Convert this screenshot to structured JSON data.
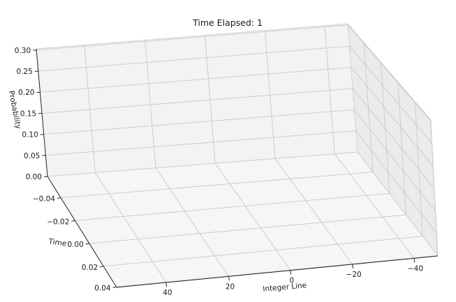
{
  "chart_data": {
    "type": "bar3d",
    "title": "Time Elapsed: 1",
    "xlabel": "Integer Line",
    "ylabel": "Time",
    "zlabel": "Probability",
    "x_ticks": [
      "40",
      "20",
      "0",
      "−20",
      "−40"
    ],
    "y_ticks": [
      "−0.04",
      "−0.02",
      "0.00",
      "0.02",
      "0.04"
    ],
    "z_ticks": [
      "0.00",
      "0.05",
      "0.10",
      "0.15",
      "0.20",
      "0.25",
      "0.30"
    ],
    "zlim": [
      0,
      0.3
    ],
    "ylim": [
      -0.05,
      0.05
    ],
    "grid": true,
    "series": []
  }
}
